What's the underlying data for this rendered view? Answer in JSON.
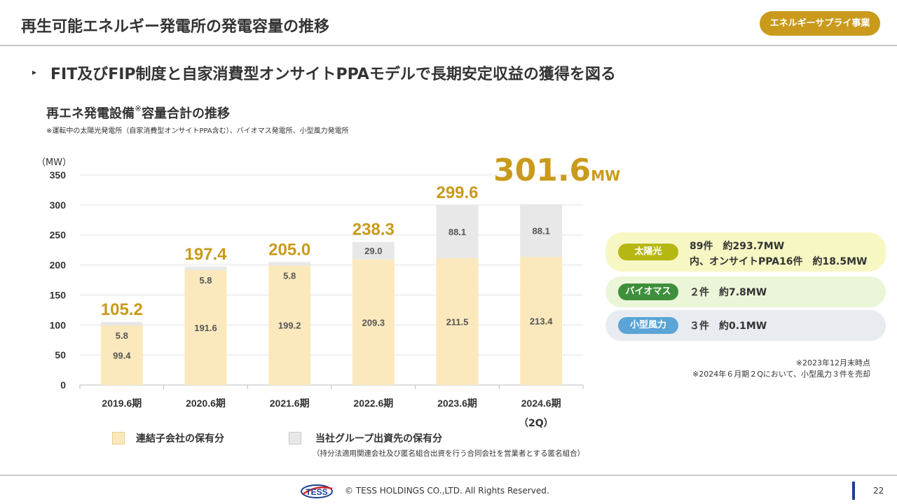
{
  "header": {
    "title": "再生可能エネルギー発電所の発電容量の推移",
    "badge": "エネルギーサプライ事業"
  },
  "headline": {
    "marker": "▸",
    "text": "FIT及びFIP制度と自家消費型オンサイトPPAモデルで長期安定収益の獲得を図る"
  },
  "chart_section": {
    "title": "再エネ発電設備",
    "title_mark": "※",
    "title_rest": "容量合計の推移",
    "note": "※運転中の太陽光発電所（自家消費型オンサイトPPA含む）、バイオマス発電所、小型風力発電所",
    "y_unit": "（MW）",
    "latest_total_value": "301.6",
    "latest_total_unit": "MW",
    "latest_period_sub": "（2Q）"
  },
  "chart_data": {
    "type": "bar",
    "stacked": true,
    "title": "再エネ発電設備※容量合計の推移",
    "ylabel": "（MW）",
    "ylim": [
      0,
      350
    ],
    "yticks": [
      0,
      50,
      100,
      150,
      200,
      250,
      300,
      350
    ],
    "categories": [
      "2019.6期",
      "2020.6期",
      "2021.6期",
      "2022.6期",
      "2023.6期",
      "2024.6期"
    ],
    "series": [
      {
        "name": "連結子会社の保有分",
        "color": "#fbe9bd",
        "values": [
          99.4,
          191.6,
          199.2,
          209.3,
          211.5,
          213.4
        ],
        "labels": [
          "99.4",
          "191.6",
          "199.2",
          "209.3",
          "211.5",
          "213.4"
        ]
      },
      {
        "name": "当社グループ出資先の保有分",
        "color": "#e8e8e8",
        "values": [
          5.8,
          5.8,
          5.8,
          29.0,
          88.1,
          88.1
        ],
        "labels": [
          "5.8",
          "5.8",
          "5.8",
          "29.0",
          "88.1",
          "88.1"
        ]
      }
    ],
    "totals": [
      105.2,
      197.4,
      205.0,
      238.3,
      299.6,
      301.6
    ],
    "total_labels": [
      "105.2",
      "197.4",
      "205.0",
      "238.3",
      "299.6",
      ""
    ],
    "grid": true
  },
  "legend": {
    "items": [
      {
        "label": "連結子会社の保有分",
        "color": "#fbe9bd",
        "border": "#e6cf8e"
      },
      {
        "label": "当社グループ出資先の保有分",
        "color": "#e8e8e8",
        "border": "#c8c8c8"
      }
    ],
    "note": "（持分法適用関連会社及び匿名組合出資を行う合同会社を営業者とする匿名組合）"
  },
  "breakdown": [
    {
      "tag": "太陽光",
      "tag_color": "#b5b812",
      "bg": "#f7f7c4",
      "line1": "89件　約293.7MW",
      "line2": "内、オンサイトPPA16件　約18.5MW"
    },
    {
      "tag": "バイオマス",
      "tag_color": "#3e8f3b",
      "bg": "#eaf6d7",
      "line1": "２件　約7.8MW",
      "line2": ""
    },
    {
      "tag": "小型風力",
      "tag_color": "#5aa4d6",
      "bg": "#e8ecf0",
      "line1": "３件　約0.1MW",
      "line2": ""
    }
  ],
  "notes": {
    "note1": "※2023年12月末時点",
    "note2": "※2024年６月期２Qにおいて、小型風力３件を売却"
  },
  "footer": {
    "logo_text": "TESS",
    "copyright": "© TESS HOLDINGS CO.,LTD. All Rights Reserved.",
    "page": "22"
  }
}
